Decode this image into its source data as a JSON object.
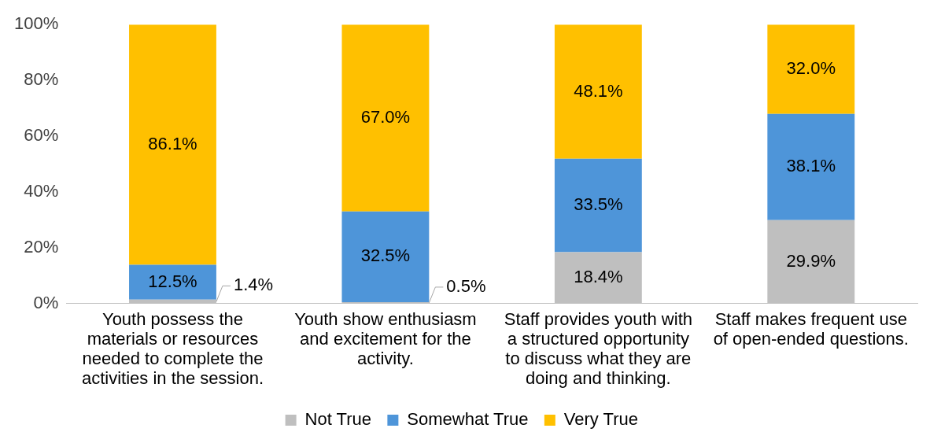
{
  "chart_data": {
    "type": "bar",
    "stacked": true,
    "categories": [
      "Youth possess the materials or resources needed to complete the activities in the session.",
      "Youth show enthusiasm and excitement for the activity.",
      "Staff provides youth with a structured opportunity to discuss what they are doing and thinking.",
      "Staff makes frequent use of open-ended questions."
    ],
    "series": [
      {
        "name": "Not True",
        "color": "#bfbfbf",
        "values": [
          1.4,
          0.5,
          18.4,
          29.9
        ],
        "value_labels": [
          "1.4%",
          "0.5%",
          "18.4%",
          "29.9%"
        ]
      },
      {
        "name": "Somewhat True",
        "color": "#4e95d9",
        "values": [
          12.5,
          32.5,
          33.5,
          38.1
        ],
        "value_labels": [
          "12.5%",
          "32.5%",
          "33.5%",
          "38.1%"
        ]
      },
      {
        "name": "Very True",
        "color": "#ffc000",
        "values": [
          86.1,
          67.0,
          48.1,
          32.0
        ],
        "value_labels": [
          "86.1%",
          "67.0%",
          "48.1%",
          "32.0%"
        ]
      }
    ],
    "ylim": [
      0,
      100
    ],
    "yticks": [
      {
        "value": 0,
        "label": "0%"
      },
      {
        "value": 20,
        "label": "20%"
      },
      {
        "value": 40,
        "label": "40%"
      },
      {
        "value": 60,
        "label": "60%"
      },
      {
        "value": 80,
        "label": "80%"
      },
      {
        "value": 100,
        "label": "100%"
      }
    ],
    "grid": false,
    "legend": "bottom"
  }
}
